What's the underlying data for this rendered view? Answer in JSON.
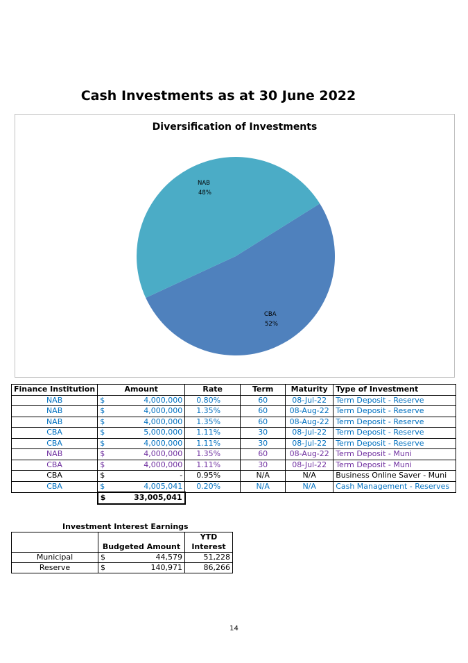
{
  "page_title": "Cash Investments as at 30 June 2022",
  "chart_data": {
    "type": "pie",
    "title": "Diversification of Investments",
    "slices": [
      {
        "label": "NAB",
        "percent_label": "48%",
        "value": 48,
        "color": "#4bacc6"
      },
      {
        "label": "CBA",
        "percent_label": "52%",
        "value": 52,
        "color": "#4f81bd"
      }
    ]
  },
  "investments": {
    "headers": [
      "Finance Institution",
      "Amount",
      "Rate",
      "Term",
      "Maturity",
      "Type of Investment"
    ],
    "rows": [
      {
        "institution": "NAB",
        "currency": "$",
        "amount": "4,000,000",
        "rate": "0.80%",
        "term": "60",
        "maturity": "08-Jul-22",
        "type": "Term Deposit - Reserve",
        "color": "blue"
      },
      {
        "institution": "NAB",
        "currency": "$",
        "amount": "4,000,000",
        "rate": "1.35%",
        "term": "60",
        "maturity": "08-Aug-22",
        "type": "Term Deposit - Reserve",
        "color": "blue"
      },
      {
        "institution": "NAB",
        "currency": "$",
        "amount": "4,000,000",
        "rate": "1.35%",
        "term": "60",
        "maturity": "08-Aug-22",
        "type": "Term Deposit - Reserve",
        "color": "blue"
      },
      {
        "institution": "CBA",
        "currency": "$",
        "amount": "5,000,000",
        "rate": "1.11%",
        "term": "30",
        "maturity": "08-Jul-22",
        "type": "Term Deposit - Reserve",
        "color": "blue"
      },
      {
        "institution": "CBA",
        "currency": "$",
        "amount": "4,000,000",
        "rate": "1.11%",
        "term": "30",
        "maturity": "08-Jul-22",
        "type": "Term Deposit - Reserve",
        "color": "blue"
      },
      {
        "institution": "NAB",
        "currency": "$",
        "amount": "4,000,000",
        "rate": "1.35%",
        "term": "60",
        "maturity": "08-Aug-22",
        "type": "Term Deposit - Muni",
        "color": "purple"
      },
      {
        "institution": "CBA",
        "currency": "$",
        "amount": "4,000,000",
        "rate": "1.11%",
        "term": "30",
        "maturity": "08-Jul-22",
        "type": "Term Deposit - Muni",
        "color": "purple"
      },
      {
        "institution": "CBA",
        "currency": "$",
        "amount": "-",
        "rate": "0.95%",
        "term": "N/A",
        "maturity": "N/A",
        "type": "Business Online Saver - Muni",
        "color": "black"
      },
      {
        "institution": "CBA",
        "currency": "$",
        "amount": "4,005,041",
        "rate": "0.20%",
        "term": "N/A",
        "maturity": "N/A",
        "type": "Cash Management - Reserves",
        "color": "blue"
      }
    ],
    "total_currency": "$",
    "total_amount": "33,005,041"
  },
  "earnings": {
    "title": "Investment Interest Earnings",
    "header_budgeted": "Budgeted Amount",
    "header_ytd_line1": "YTD",
    "header_ytd_line2": "Interest",
    "rows": [
      {
        "label": "Municipal",
        "currency": "$",
        "budgeted": "44,579",
        "ytd": "51,228"
      },
      {
        "label": "Reserve",
        "currency": "$",
        "budgeted": "140,971",
        "ytd": "86,266"
      }
    ]
  },
  "page_number": "14"
}
